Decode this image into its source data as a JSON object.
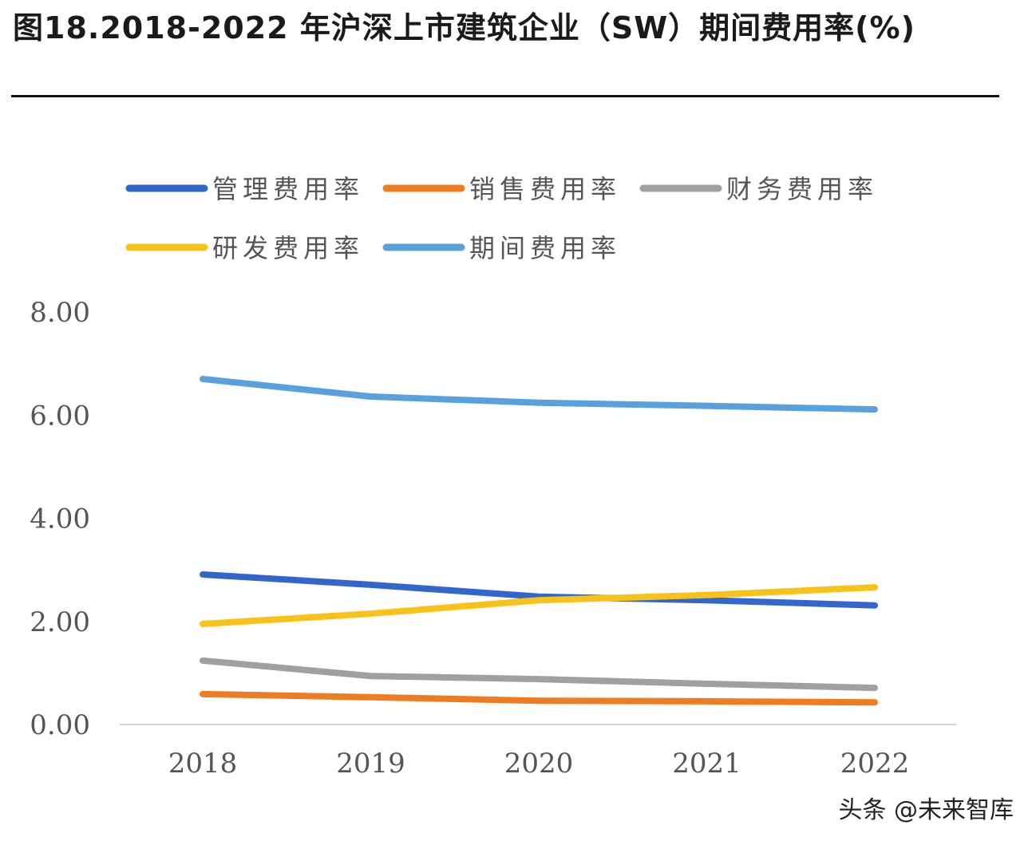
{
  "title": "图18.2018-2022 年沪深上市建筑企业（SW）期间费用率(%)",
  "watermark": "头条 @未来智库",
  "chart_data": {
    "type": "line",
    "title": "图18.2018-2022 年沪深上市建筑企业（SW）期间费用率(%)",
    "xlabel": "",
    "ylabel": "",
    "categories": [
      "2018",
      "2019",
      "2020",
      "2021",
      "2022"
    ],
    "ylim": [
      0,
      8
    ],
    "yticks": [
      "0.00",
      "2.00",
      "4.00",
      "6.00",
      "8.00"
    ],
    "grid": false,
    "legend_position": "top",
    "series": [
      {
        "name": "管理费用率",
        "color": "#3366cc",
        "values": [
          2.91,
          2.71,
          2.48,
          2.41,
          2.31
        ]
      },
      {
        "name": "销售费用率",
        "color": "#f07c22",
        "values": [
          0.59,
          0.53,
          0.46,
          0.45,
          0.43
        ]
      },
      {
        "name": "财务费用率",
        "color": "#a0a0a0",
        "values": [
          1.24,
          0.94,
          0.88,
          0.79,
          0.71
        ]
      },
      {
        "name": "研发费用率",
        "color": "#f7c31a",
        "values": [
          1.95,
          2.15,
          2.41,
          2.51,
          2.66
        ]
      },
      {
        "name": "期间费用率",
        "color": "#5aa0dc",
        "values": [
          6.7,
          6.36,
          6.24,
          6.18,
          6.11
        ]
      }
    ]
  }
}
